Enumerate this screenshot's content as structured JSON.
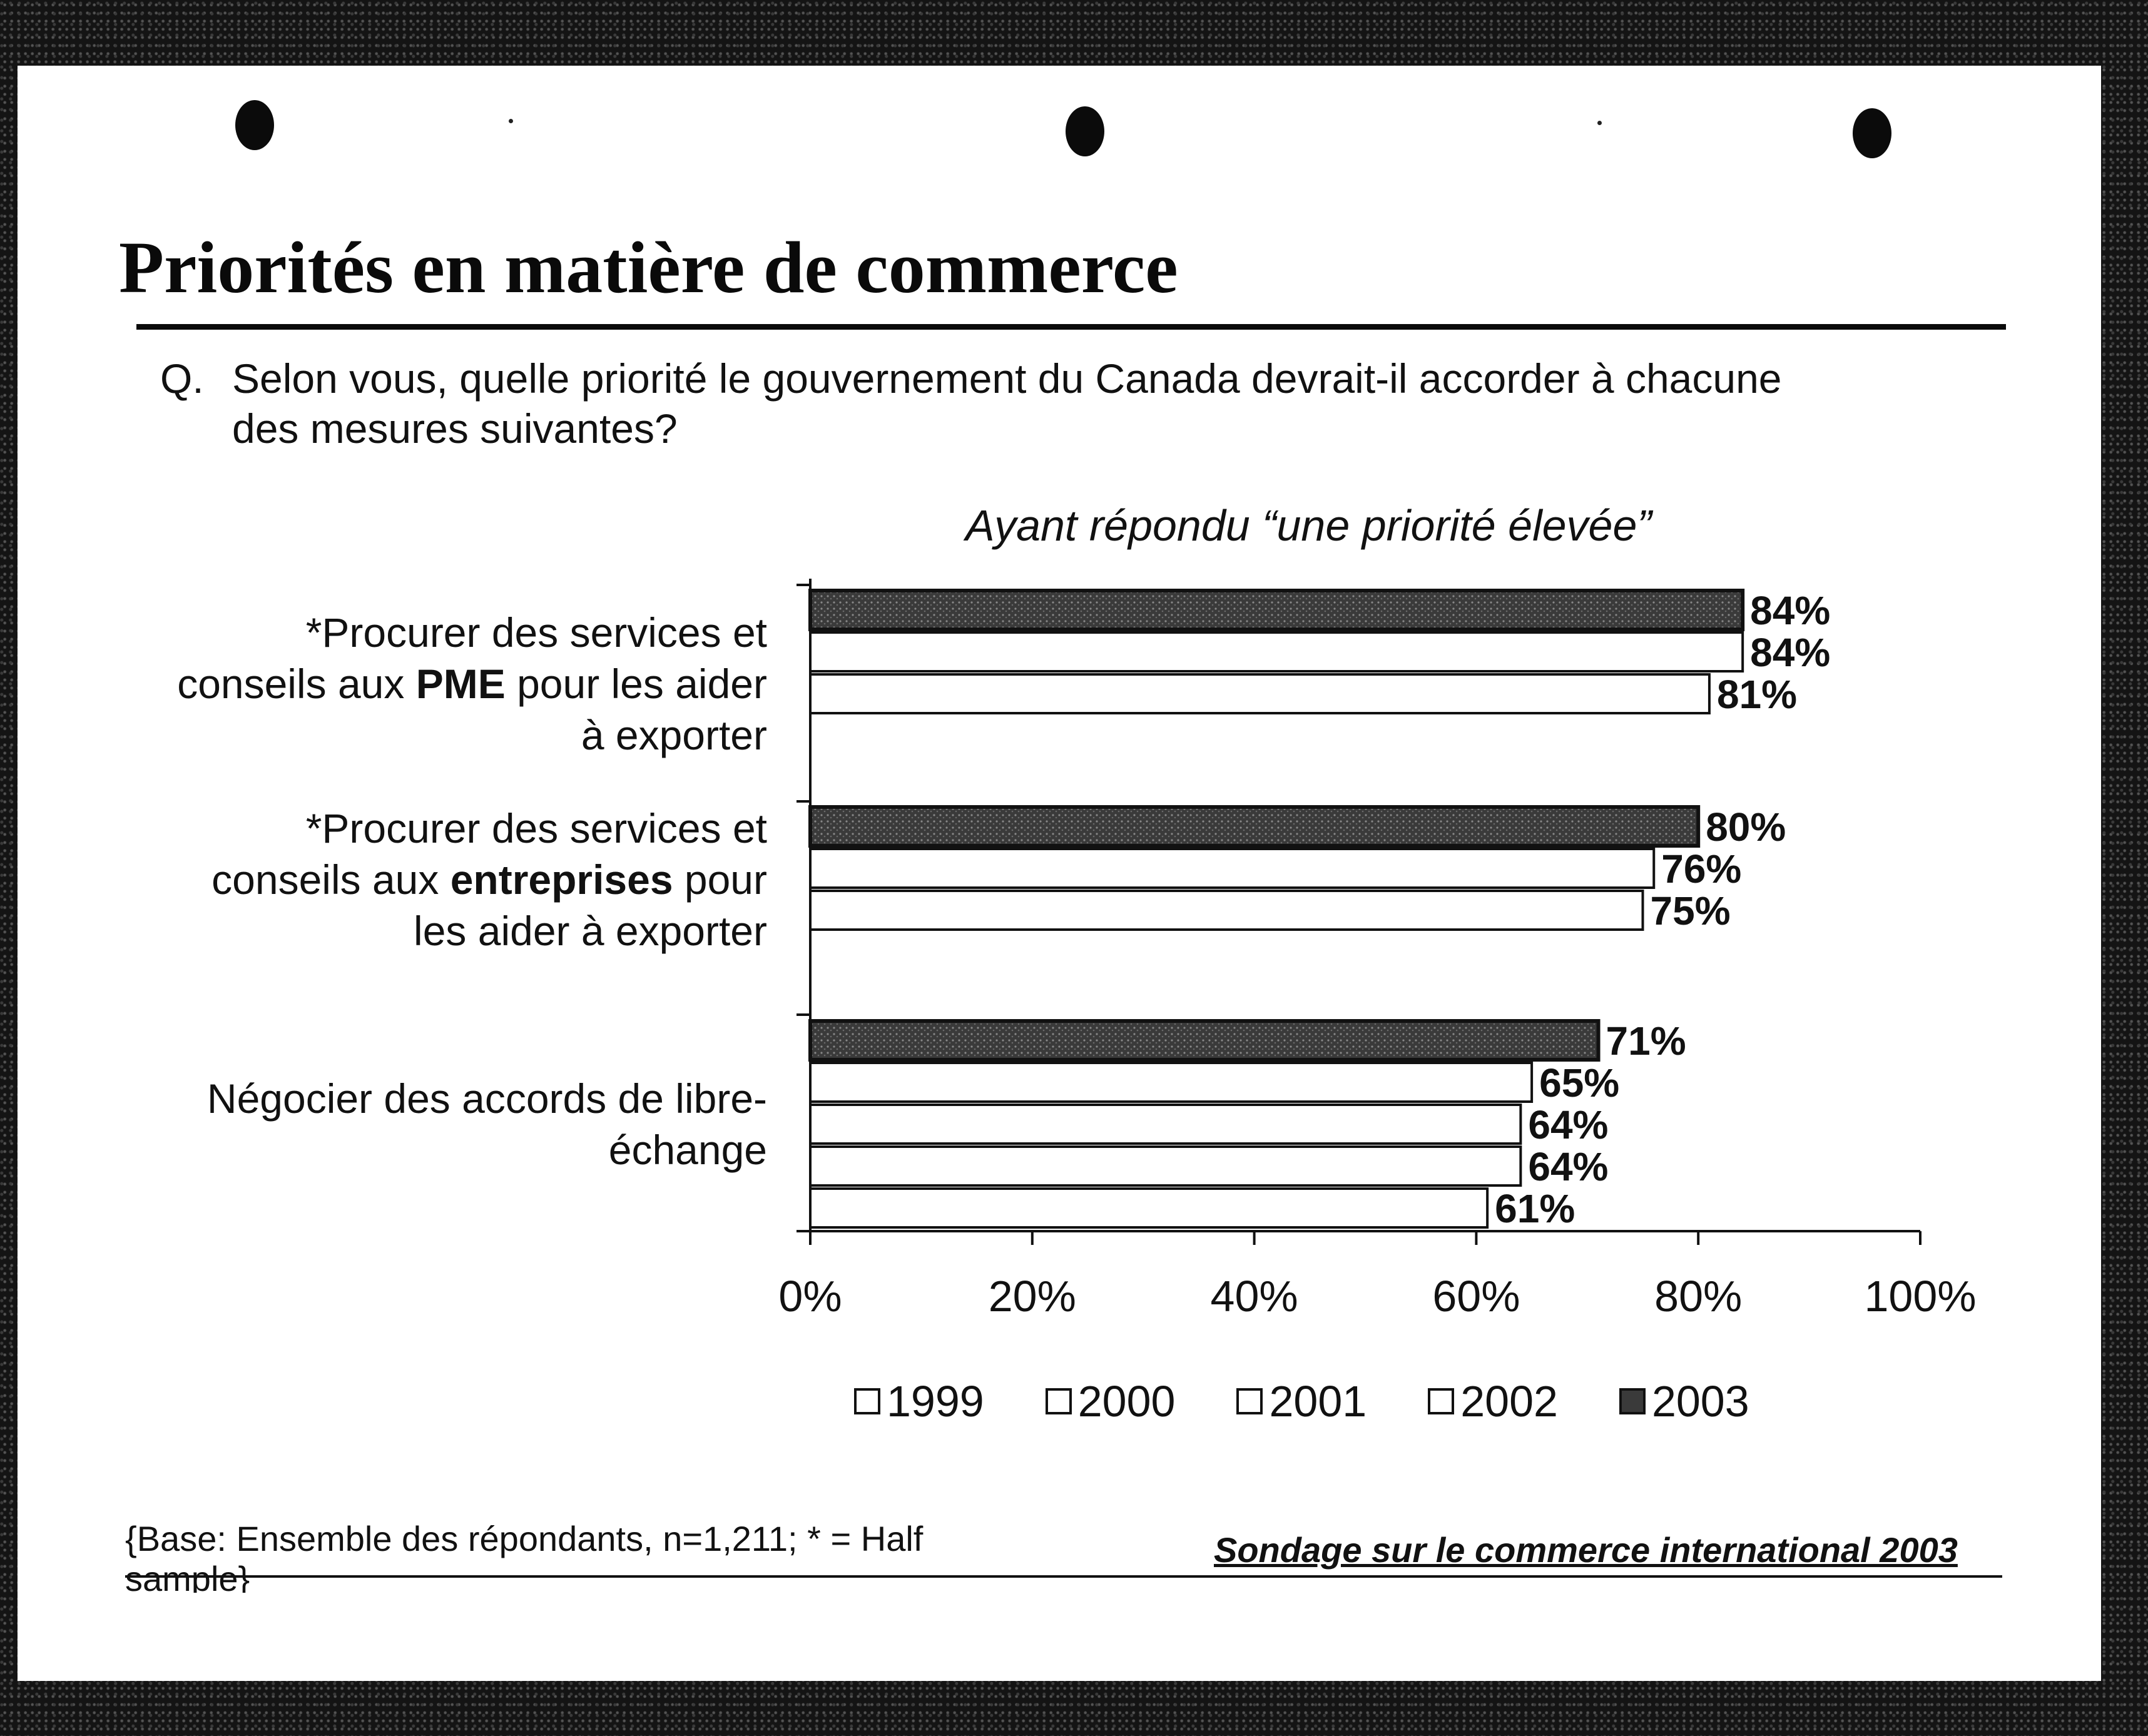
{
  "title": "Priorités en matière de commerce",
  "question": {
    "prefix": "Q.",
    "line1": "Selon vous, quelle priorité le gouvernement du Canada devrait-il accorder à chacune",
    "line2": "des mesures suivantes?"
  },
  "chart_data": {
    "type": "bar",
    "orientation": "horizontal",
    "title": "Ayant répondu “une priorité élevée”",
    "categories": [
      {
        "lines": [
          [
            {
              "t": "*Procurer des services et",
              "b": false
            }
          ],
          [
            {
              "t": "conseils aux ",
              "b": false
            },
            {
              "t": "PME",
              "b": true
            },
            {
              "t": " pour les aider",
              "b": false
            }
          ],
          [
            {
              "t": "à exporter",
              "b": false
            }
          ]
        ],
        "bars": [
          {
            "year": "2003",
            "value": 84,
            "label": "84%"
          },
          {
            "year": "2002",
            "value": 84,
            "label": "84%"
          },
          {
            "year": "2001",
            "value": 81,
            "label": "81%"
          }
        ]
      },
      {
        "lines": [
          [
            {
              "t": "*Procurer des services et",
              "b": false
            }
          ],
          [
            {
              "t": "conseils aux ",
              "b": false
            },
            {
              "t": "entreprises",
              "b": true
            },
            {
              "t": " pour",
              "b": false
            }
          ],
          [
            {
              "t": "les aider à exporter",
              "b": false
            }
          ]
        ],
        "bars": [
          {
            "year": "2003",
            "value": 80,
            "label": "80%"
          },
          {
            "year": "2002",
            "value": 76,
            "label": "76%"
          },
          {
            "year": "2001",
            "value": 75,
            "label": "75%"
          }
        ]
      },
      {
        "lines": [
          [
            {
              "t": "Négocier des accords de libre-",
              "b": false
            }
          ],
          [
            {
              "t": "échange",
              "b": false
            }
          ]
        ],
        "bars": [
          {
            "year": "2003",
            "value": 71,
            "label": "71%"
          },
          {
            "year": "2002",
            "value": 65,
            "label": "65%"
          },
          {
            "year": "2001",
            "value": 64,
            "label": "64%"
          },
          {
            "year": "2000",
            "value": 64,
            "label": "64%"
          },
          {
            "year": "1999",
            "value": 61,
            "label": "61%"
          }
        ]
      }
    ],
    "xlim": [
      0,
      100
    ],
    "xticks": [
      "0%",
      "20%",
      "40%",
      "60%",
      "80%",
      "100%"
    ],
    "legend": {
      "placement": "bottom",
      "items": [
        {
          "label": "1999",
          "color": "#ffffff"
        },
        {
          "label": "2000",
          "color": "#ffffff"
        },
        {
          "label": "2001",
          "color": "#ffffff"
        },
        {
          "label": "2002",
          "color": "#ffffff"
        },
        {
          "label": "2003",
          "color": "#3a3a3a"
        }
      ]
    },
    "colors": {
      "highlight": "#3a3a3a",
      "other": "#ffffff",
      "outline": "#111111"
    }
  },
  "footer": {
    "base": "{Base: Ensemble des répondants, n=1,211; * = Half sample}",
    "source": "Sondage sur le commerce international 2003"
  }
}
